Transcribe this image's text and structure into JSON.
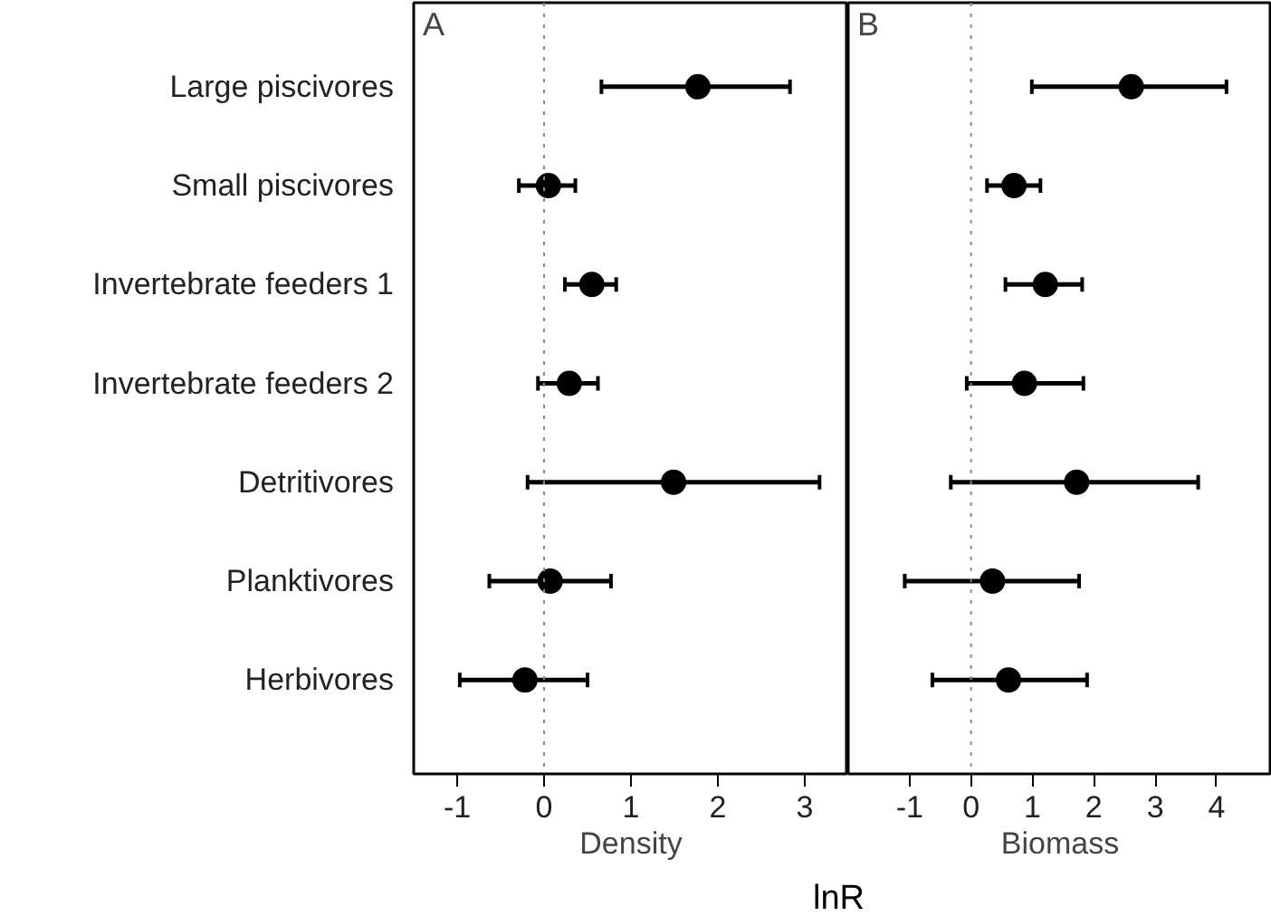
{
  "chart_data": [
    {
      "type": "scatter",
      "orientation": "horizontal",
      "title": "A",
      "xlabel": "Density",
      "categories": [
        "Large piscivores",
        "Small piscivores",
        "Invertebrate feeders 1",
        "Invertebrate feeders 2",
        "Detritivores",
        "Planktivores",
        "Herbivores"
      ],
      "values": [
        1.77,
        0.05,
        0.55,
        0.29,
        1.49,
        0.07,
        -0.22
      ],
      "errors": [
        [
          0.66,
          2.83
        ],
        [
          -0.29,
          0.36
        ],
        [
          0.24,
          0.83
        ],
        [
          -0.07,
          0.62
        ],
        [
          -0.19,
          3.17
        ],
        [
          -0.63,
          0.77
        ],
        [
          -0.97,
          0.5
        ]
      ],
      "color": "#000000",
      "marker": "circle",
      "xlim": [
        -1.5,
        3.5
      ],
      "xticks": [
        -1,
        0,
        1,
        2,
        3
      ],
      "grid": false,
      "ref_lines": [
        {
          "axis": "x",
          "value": 0,
          "color": "#888888",
          "line_style": "dotted"
        }
      ]
    },
    {
      "type": "scatter",
      "orientation": "horizontal",
      "title": "B",
      "xlabel": "Biomass",
      "categories": [
        null,
        null,
        null,
        null,
        null,
        null,
        null
      ],
      "values": [
        2.61,
        0.7,
        1.21,
        0.87,
        1.72,
        0.35,
        0.61
      ],
      "errors": [
        [
          0.99,
          4.16
        ],
        [
          0.26,
          1.13
        ],
        [
          0.56,
          1.81
        ],
        [
          -0.07,
          1.83
        ],
        [
          -0.33,
          3.7
        ],
        [
          -1.08,
          1.76
        ],
        [
          -0.63,
          1.89
        ]
      ],
      "color": "#000000",
      "marker": "circle",
      "xlim": [
        -2,
        4.9
      ],
      "xticks": [
        -1,
        0,
        1,
        2,
        3,
        4
      ],
      "grid": false,
      "tick_labels": "x",
      "ref_lines": [
        {
          "axis": "x",
          "value": 0,
          "color": "#888888",
          "line_style": "dotted"
        }
      ],
      "annotations": [
        "lnR"
      ]
    }
  ]
}
